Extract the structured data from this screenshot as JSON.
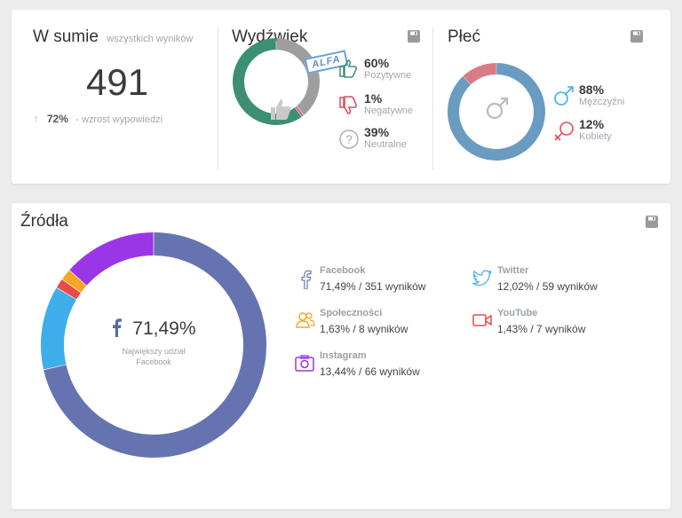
{
  "summary": {
    "title": "W sumie",
    "subtitle": "wszystkich wyników",
    "total": "491",
    "growth_pct": "72%",
    "growth_desc": "- wzrost wypowiedzi"
  },
  "sentiment": {
    "title": "Wydźwięk",
    "badge": "ALFA",
    "items": [
      {
        "value": "60%",
        "label": "Pozytywne",
        "icon": "thumb-up-icon"
      },
      {
        "value": "1%",
        "label": "Negatywne",
        "icon": "thumb-down-icon"
      },
      {
        "value": "39%",
        "label": "Neutralne",
        "icon": "question-icon"
      }
    ],
    "fractions": [
      0.6,
      0.01,
      0.39
    ],
    "colors": {
      "positive": "#3d8f73",
      "negative": "#d96573",
      "neutral": "#9e9e9e"
    }
  },
  "gender": {
    "title": "Płeć",
    "items": [
      {
        "value": "88%",
        "label": "Mężczyźni",
        "icon": "male-icon"
      },
      {
        "value": "12%",
        "label": "Kobiety",
        "icon": "female-icon"
      }
    ],
    "fractions": [
      0.88,
      0.12
    ],
    "colors": {
      "male": "#6a9bc1",
      "female": "#d97b86"
    }
  },
  "sources": {
    "title": "Źródła",
    "center_value": "71,49%",
    "center_caption_line1": "Największy udział",
    "center_caption_line2": "Facebook",
    "items": [
      {
        "name": "Facebook",
        "meta": "71,49% / 351 wyników",
        "icon": "facebook-icon"
      },
      {
        "name": "Twitter",
        "meta": "12,02% / 59 wyników",
        "icon": "twitter-icon"
      },
      {
        "name": "Społeczności",
        "meta": "1,63% / 8 wyników",
        "icon": "community-icon"
      },
      {
        "name": "YouTube",
        "meta": "1,43% / 7 wyników",
        "icon": "youtube-icon"
      },
      {
        "name": "Instagram",
        "meta": "13,44% / 66 wyników",
        "icon": "instagram-icon"
      }
    ]
  },
  "chart_data": [
    {
      "type": "pie",
      "title": "Wydźwięk",
      "categories": [
        "Pozytywne",
        "Negatywne",
        "Neutralne"
      ],
      "values": [
        60,
        1,
        39
      ]
    },
    {
      "type": "pie",
      "title": "Płeć",
      "categories": [
        "Mężczyźni",
        "Kobiety"
      ],
      "values": [
        88,
        12
      ]
    },
    {
      "type": "pie",
      "title": "Źródła",
      "categories": [
        "Facebook",
        "Twitter",
        "YouTube",
        "Społeczności",
        "Instagram"
      ],
      "values": [
        71.49,
        12.02,
        1.43,
        1.63,
        13.44
      ],
      "colors": [
        "#6574b0",
        "#3daee9",
        "#e94b4b",
        "#f5a623",
        "#9b35e8"
      ]
    }
  ]
}
